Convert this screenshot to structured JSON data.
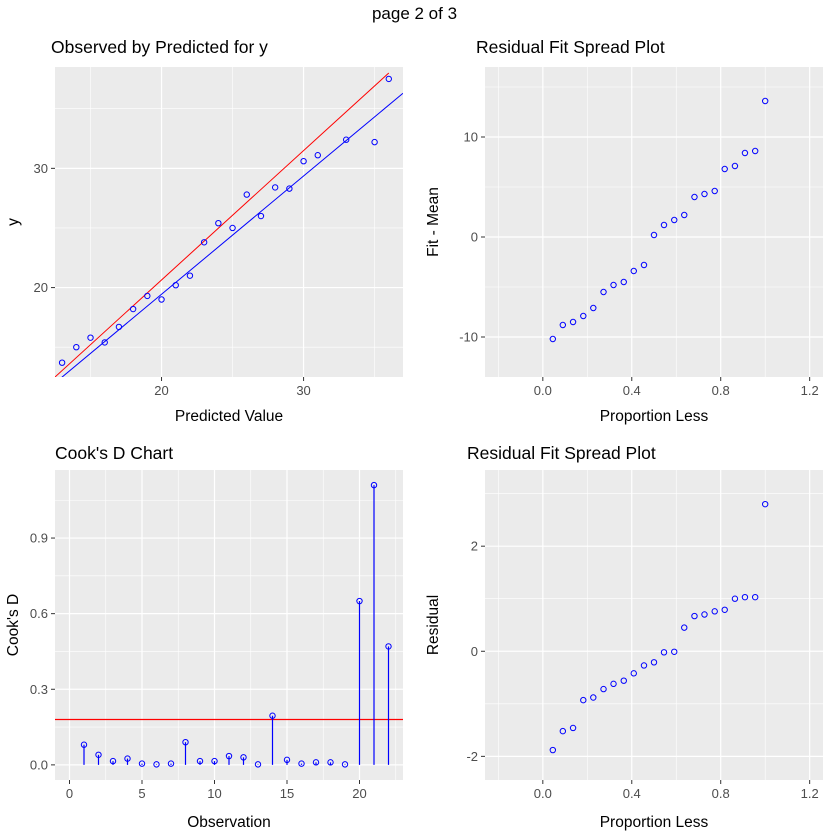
{
  "page_label": "page 2 of 3",
  "colors": {
    "panel_bg": "#EBEBEB",
    "grid": "#FFFFFF",
    "points": "#0000FF",
    "fit_line": "#0000FF",
    "ref_line": "#FF0000",
    "tick_text": "#4D4D4D"
  },
  "chart_data": [
    {
      "id": "observed-predicted",
      "type": "scatter",
      "title": "Observed by Predicted for y",
      "xlabel": "Predicted Value",
      "ylabel": "y",
      "xlim": [
        12.5,
        37.0
      ],
      "ylim": [
        12.5,
        38.5
      ],
      "xticks": [
        20,
        30
      ],
      "yticks": [
        20,
        30
      ],
      "x": [
        13.0,
        14.0,
        15.0,
        16.0,
        17.0,
        18.0,
        19.0,
        20.0,
        21.0,
        22.0,
        23.0,
        24.0,
        25.0,
        26.0,
        27.0,
        28.0,
        29.0,
        30.0,
        31.0,
        33.0,
        35.0,
        36.0
      ],
      "y": [
        13.7,
        15.0,
        15.8,
        15.4,
        16.7,
        18.2,
        19.3,
        19.0,
        20.2,
        21.0,
        23.8,
        25.4,
        25.0,
        27.8,
        26.0,
        28.4,
        28.3,
        30.6,
        31.1,
        32.4,
        32.2,
        37.5
      ],
      "lines": [
        {
          "name": "identity",
          "color": "#FF0000",
          "x": [
            12.5,
            36.0
          ],
          "y": [
            12.5,
            38.0
          ]
        },
        {
          "name": "fit",
          "color": "#0000FF",
          "x": [
            12.5,
            37.0
          ],
          "y": [
            12.0,
            36.3
          ]
        }
      ]
    },
    {
      "id": "residual-fit-spread-fit",
      "type": "scatter",
      "title": "Residual Fit Spread Plot",
      "xlabel": "Proportion Less",
      "ylabel": "Fit - Mean",
      "xlim": [
        -0.26,
        1.26
      ],
      "ylim": [
        -14.0,
        17.0
      ],
      "xticks": [
        0.0,
        0.4,
        0.8,
        1.2
      ],
      "xtick_labels": [
        "0.0",
        "0.4",
        "0.8",
        "1.2"
      ],
      "yticks": [
        -10,
        0,
        10
      ],
      "x": [
        0.045,
        0.09,
        0.136,
        0.182,
        0.227,
        0.273,
        0.318,
        0.364,
        0.409,
        0.455,
        0.5,
        0.545,
        0.591,
        0.636,
        0.682,
        0.727,
        0.773,
        0.818,
        0.864,
        0.909,
        0.955,
        1.0
      ],
      "y": [
        -10.2,
        -8.8,
        -8.5,
        -7.9,
        -7.1,
        -5.5,
        -4.8,
        -4.5,
        -3.4,
        -2.8,
        0.2,
        1.2,
        1.7,
        2.2,
        4.0,
        4.3,
        4.6,
        6.8,
        7.1,
        8.4,
        8.6,
        13.6
      ]
    },
    {
      "id": "cooks-d",
      "type": "stem",
      "title": "Cook's D Chart",
      "xlabel": "Observation",
      "ylabel": "Cook's D",
      "xlim": [
        -1.0,
        23.0
      ],
      "ylim": [
        -0.06,
        1.17
      ],
      "xticks": [
        0,
        5,
        10,
        15,
        20
      ],
      "yticks": [
        0.0,
        0.3,
        0.6,
        0.9
      ],
      "ytick_labels": [
        "0.0",
        "0.3",
        "0.6",
        "0.9"
      ],
      "threshold": 0.18,
      "x": [
        1,
        2,
        3,
        4,
        5,
        6,
        7,
        8,
        9,
        10,
        11,
        12,
        13,
        14,
        15,
        16,
        17,
        18,
        19,
        20,
        21,
        22
      ],
      "y": [
        0.08,
        0.04,
        0.015,
        0.025,
        0.005,
        0.002,
        0.005,
        0.09,
        0.015,
        0.015,
        0.035,
        0.03,
        0.002,
        0.195,
        0.02,
        0.005,
        0.01,
        0.01,
        0.002,
        0.65,
        1.11,
        0.47
      ]
    },
    {
      "id": "residual-fit-spread-residual",
      "type": "scatter",
      "title": "Residual Fit Spread Plot",
      "xlabel": "Proportion Less",
      "ylabel": "Residual",
      "xlim": [
        -0.26,
        1.26
      ],
      "ylim": [
        -2.45,
        3.45
      ],
      "xticks": [
        0.0,
        0.4,
        0.8,
        1.2
      ],
      "xtick_labels": [
        "0.0",
        "0.4",
        "0.8",
        "1.2"
      ],
      "yticks": [
        -2,
        0,
        2
      ],
      "x": [
        0.045,
        0.09,
        0.136,
        0.182,
        0.227,
        0.273,
        0.318,
        0.364,
        0.409,
        0.455,
        0.5,
        0.545,
        0.591,
        0.636,
        0.682,
        0.727,
        0.773,
        0.818,
        0.864,
        0.909,
        0.955,
        1.0
      ],
      "y": [
        -1.88,
        -1.52,
        -1.46,
        -0.93,
        -0.88,
        -0.72,
        -0.62,
        -0.56,
        -0.42,
        -0.27,
        -0.21,
        -0.02,
        -0.01,
        0.45,
        0.67,
        0.7,
        0.76,
        0.79,
        1.0,
        1.03,
        1.03,
        2.8
      ]
    }
  ]
}
